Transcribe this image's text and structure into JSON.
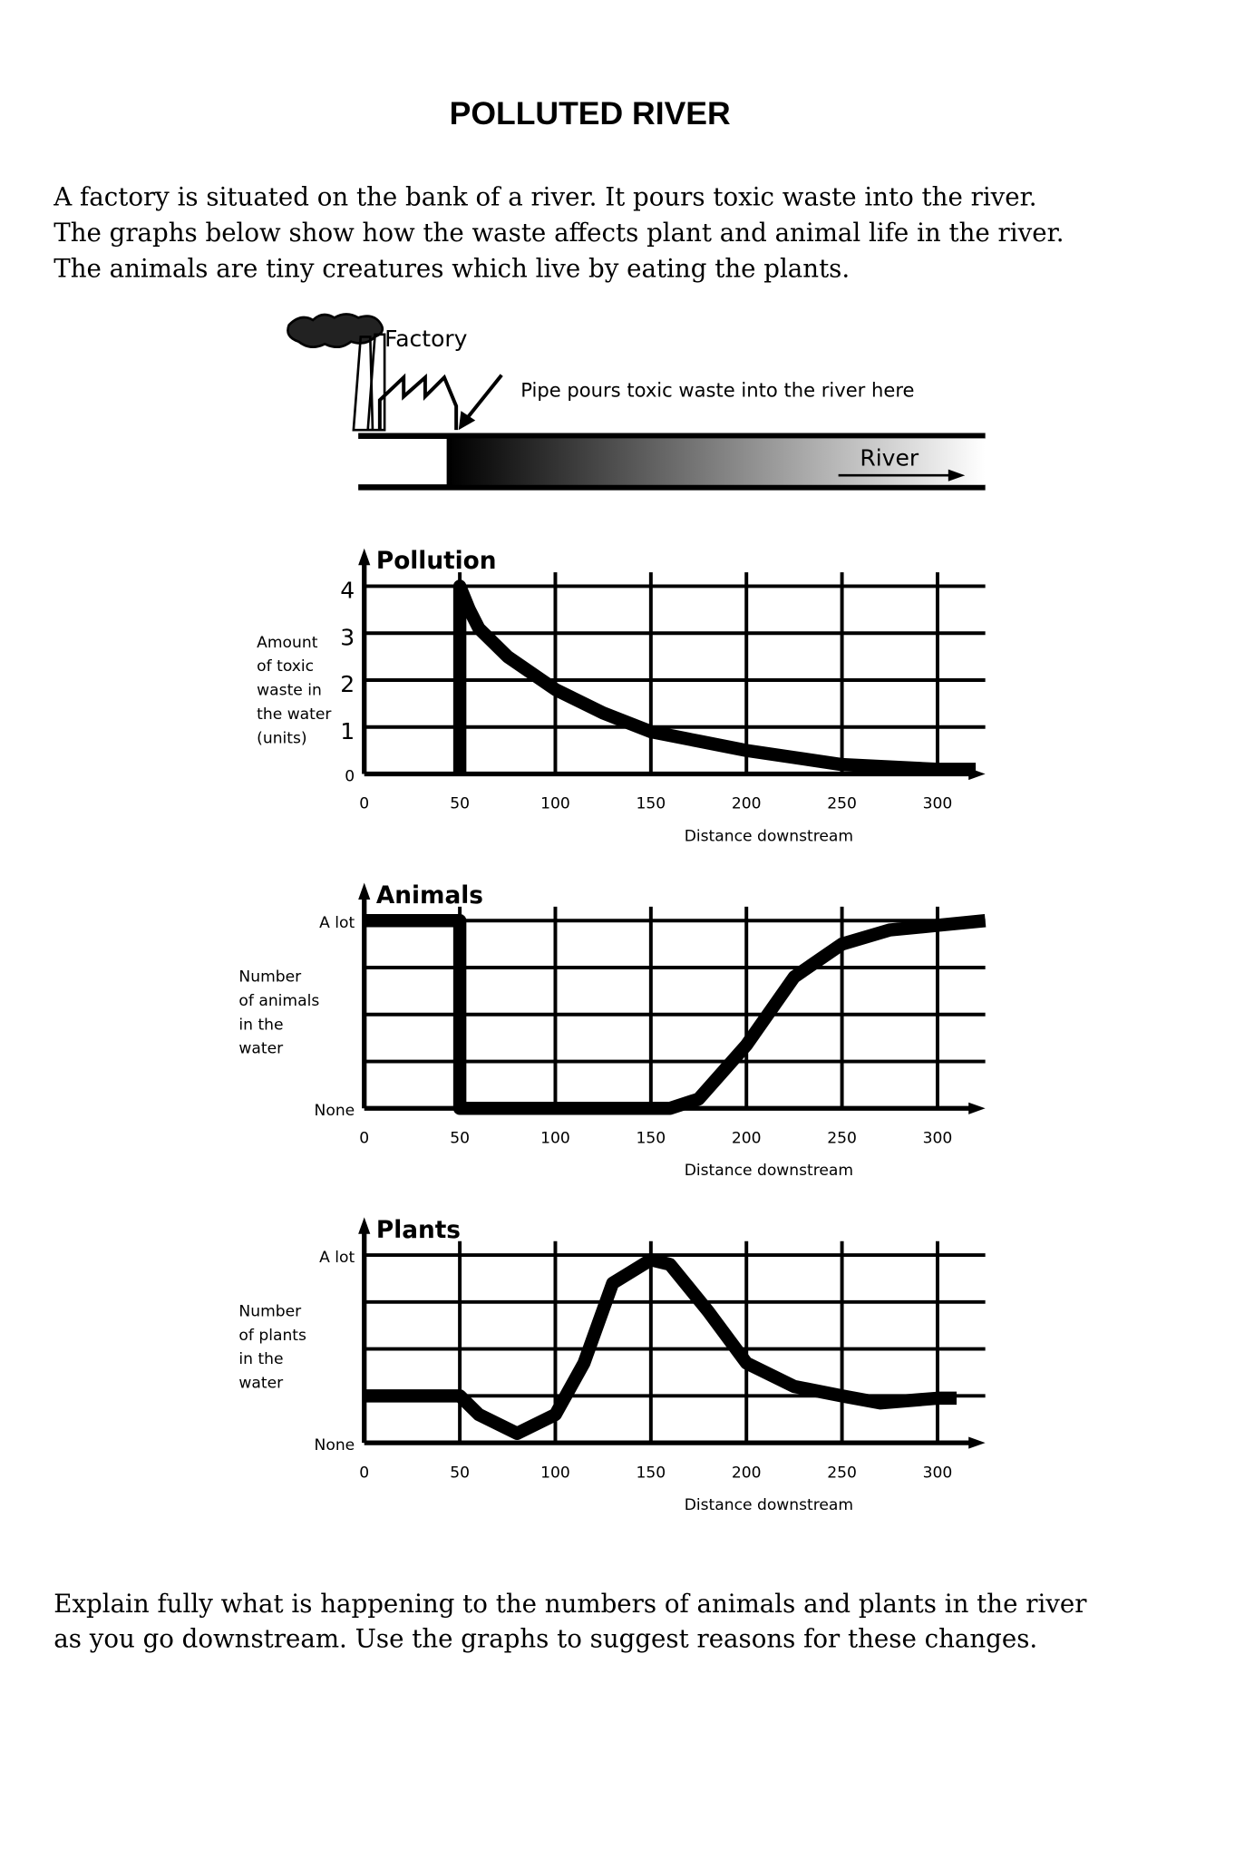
{
  "title": "POLLUTED RIVER",
  "intro": [
    "A factory is situated on the bank of a river. It pours toxic waste into the river.",
    "The graphs below show how the waste affects plant and animal life in the river.",
    "The animals are tiny creatures which live by eating the plants."
  ],
  "diagram": {
    "factory_label": "Factory",
    "pipe_label": "Pipe pours toxic waste into the river here",
    "river_label": "River"
  },
  "chart_data": [
    {
      "type": "line",
      "title": "Pollution",
      "ylabel": [
        "Amount",
        "of toxic",
        "waste in",
        "the water",
        "(units)"
      ],
      "xlabel": "Distance downstream",
      "x": [
        50,
        50,
        55,
        60,
        75,
        100,
        125,
        150,
        175,
        200,
        225,
        250,
        275,
        300,
        320
      ],
      "values": [
        0,
        4,
        3.5,
        3.1,
        2.5,
        1.8,
        1.3,
        0.9,
        0.7,
        0.5,
        0.35,
        0.2,
        0.15,
        0.1,
        0.1
      ],
      "color": "#000000",
      "xlim": [
        0,
        325
      ],
      "ylim": [
        0,
        4.5
      ],
      "xticks": [
        0,
        50,
        100,
        150,
        200,
        250,
        300
      ],
      "yticks": [
        0,
        1,
        2,
        3,
        4
      ],
      "grid": true
    },
    {
      "type": "line",
      "title": "Animals",
      "ylabel": [
        "Number",
        "of animals",
        "in the",
        "water"
      ],
      "xlabel": "Distance downstream",
      "x": [
        0,
        50,
        50,
        100,
        160,
        175,
        200,
        225,
        250,
        275,
        300,
        325
      ],
      "values": [
        4,
        4,
        0,
        0,
        0,
        0.2,
        1.35,
        2.8,
        3.5,
        3.8,
        3.9,
        4
      ],
      "color": "#000000",
      "xlim": [
        0,
        325
      ],
      "ylim": [
        0,
        4.5
      ],
      "xticks": [
        0,
        50,
        100,
        150,
        200,
        250,
        300
      ],
      "yticks": [
        {
          "value": 0,
          "label": "None"
        },
        {
          "value": 4,
          "label": "A lot"
        }
      ],
      "ygrid": [
        1,
        2,
        3,
        4
      ],
      "grid": true
    },
    {
      "type": "line",
      "title": "Plants",
      "ylabel": [
        "Number",
        "of plants",
        "in the",
        "water"
      ],
      "xlabel": "Distance downstream",
      "x": [
        0,
        50,
        60,
        80,
        100,
        115,
        130,
        150,
        160,
        180,
        200,
        225,
        250,
        270,
        300,
        310
      ],
      "values": [
        1,
        1,
        0.6,
        0.2,
        0.6,
        1.7,
        3.4,
        3.9,
        3.8,
        2.8,
        1.7,
        1.2,
        1,
        0.85,
        0.95,
        0.95
      ],
      "color": "#000000",
      "xlim": [
        0,
        325
      ],
      "ylim": [
        0,
        4.5
      ],
      "xticks": [
        0,
        50,
        100,
        150,
        200,
        250,
        300
      ],
      "yticks": [
        {
          "value": 0,
          "label": "None"
        },
        {
          "value": 4,
          "label": "A lot"
        }
      ],
      "ygrid": [
        1,
        2,
        3,
        4
      ],
      "grid": true
    }
  ],
  "question": [
    "Explain fully what is happening to the numbers of animals and plants in the river",
    "as you go downstream. Use the graphs to suggest reasons for these changes."
  ]
}
